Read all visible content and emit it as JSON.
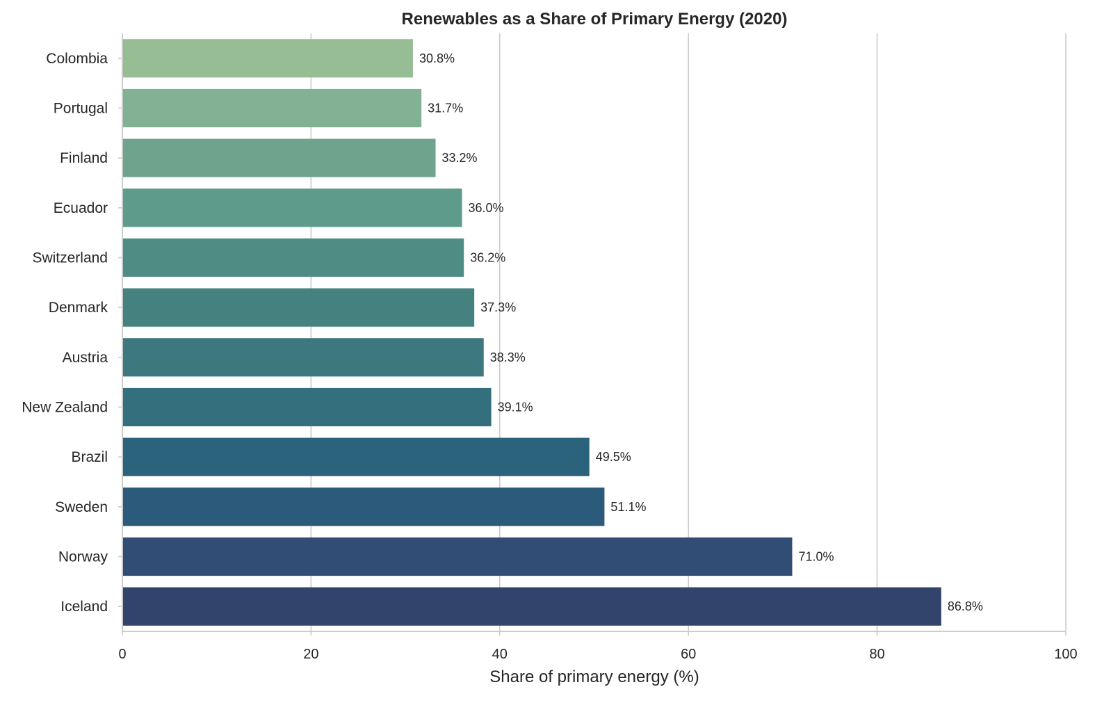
{
  "chart_data": {
    "type": "bar",
    "orientation": "horizontal",
    "title": "Renewables as a Share of Primary Energy (2020)",
    "xlabel": "Share of primary energy (%)",
    "ylabel": "",
    "xlim": [
      0,
      100
    ],
    "xticks": [
      "0",
      "20",
      "40",
      "60",
      "80",
      "100"
    ],
    "grid": "vertical",
    "categories": [
      "Colombia",
      "Portugal",
      "Finland",
      "Ecuador",
      "Switzerland",
      "Denmark",
      "Austria",
      "New Zealand",
      "Brazil",
      "Sweden",
      "Norway",
      "Iceland"
    ],
    "values": [
      30.8,
      31.7,
      33.2,
      36.0,
      36.2,
      37.3,
      38.3,
      39.1,
      49.5,
      51.1,
      71.0,
      86.8
    ],
    "data_labels": [
      "30.8%",
      "31.7%",
      "33.2%",
      "36.0%",
      "36.2%",
      "37.3%",
      "38.3%",
      "39.1%",
      "49.5%",
      "51.1%",
      "71.0%",
      "86.8%"
    ],
    "colors": [
      "#97bd95",
      "#83b193",
      "#6fa38e",
      "#5f9b8a",
      "#4f8c84",
      "#45817f",
      "#3c787e",
      "#336f7c",
      "#2b637c",
      "#2b5a7a",
      "#314d75",
      "#33446c"
    ]
  }
}
